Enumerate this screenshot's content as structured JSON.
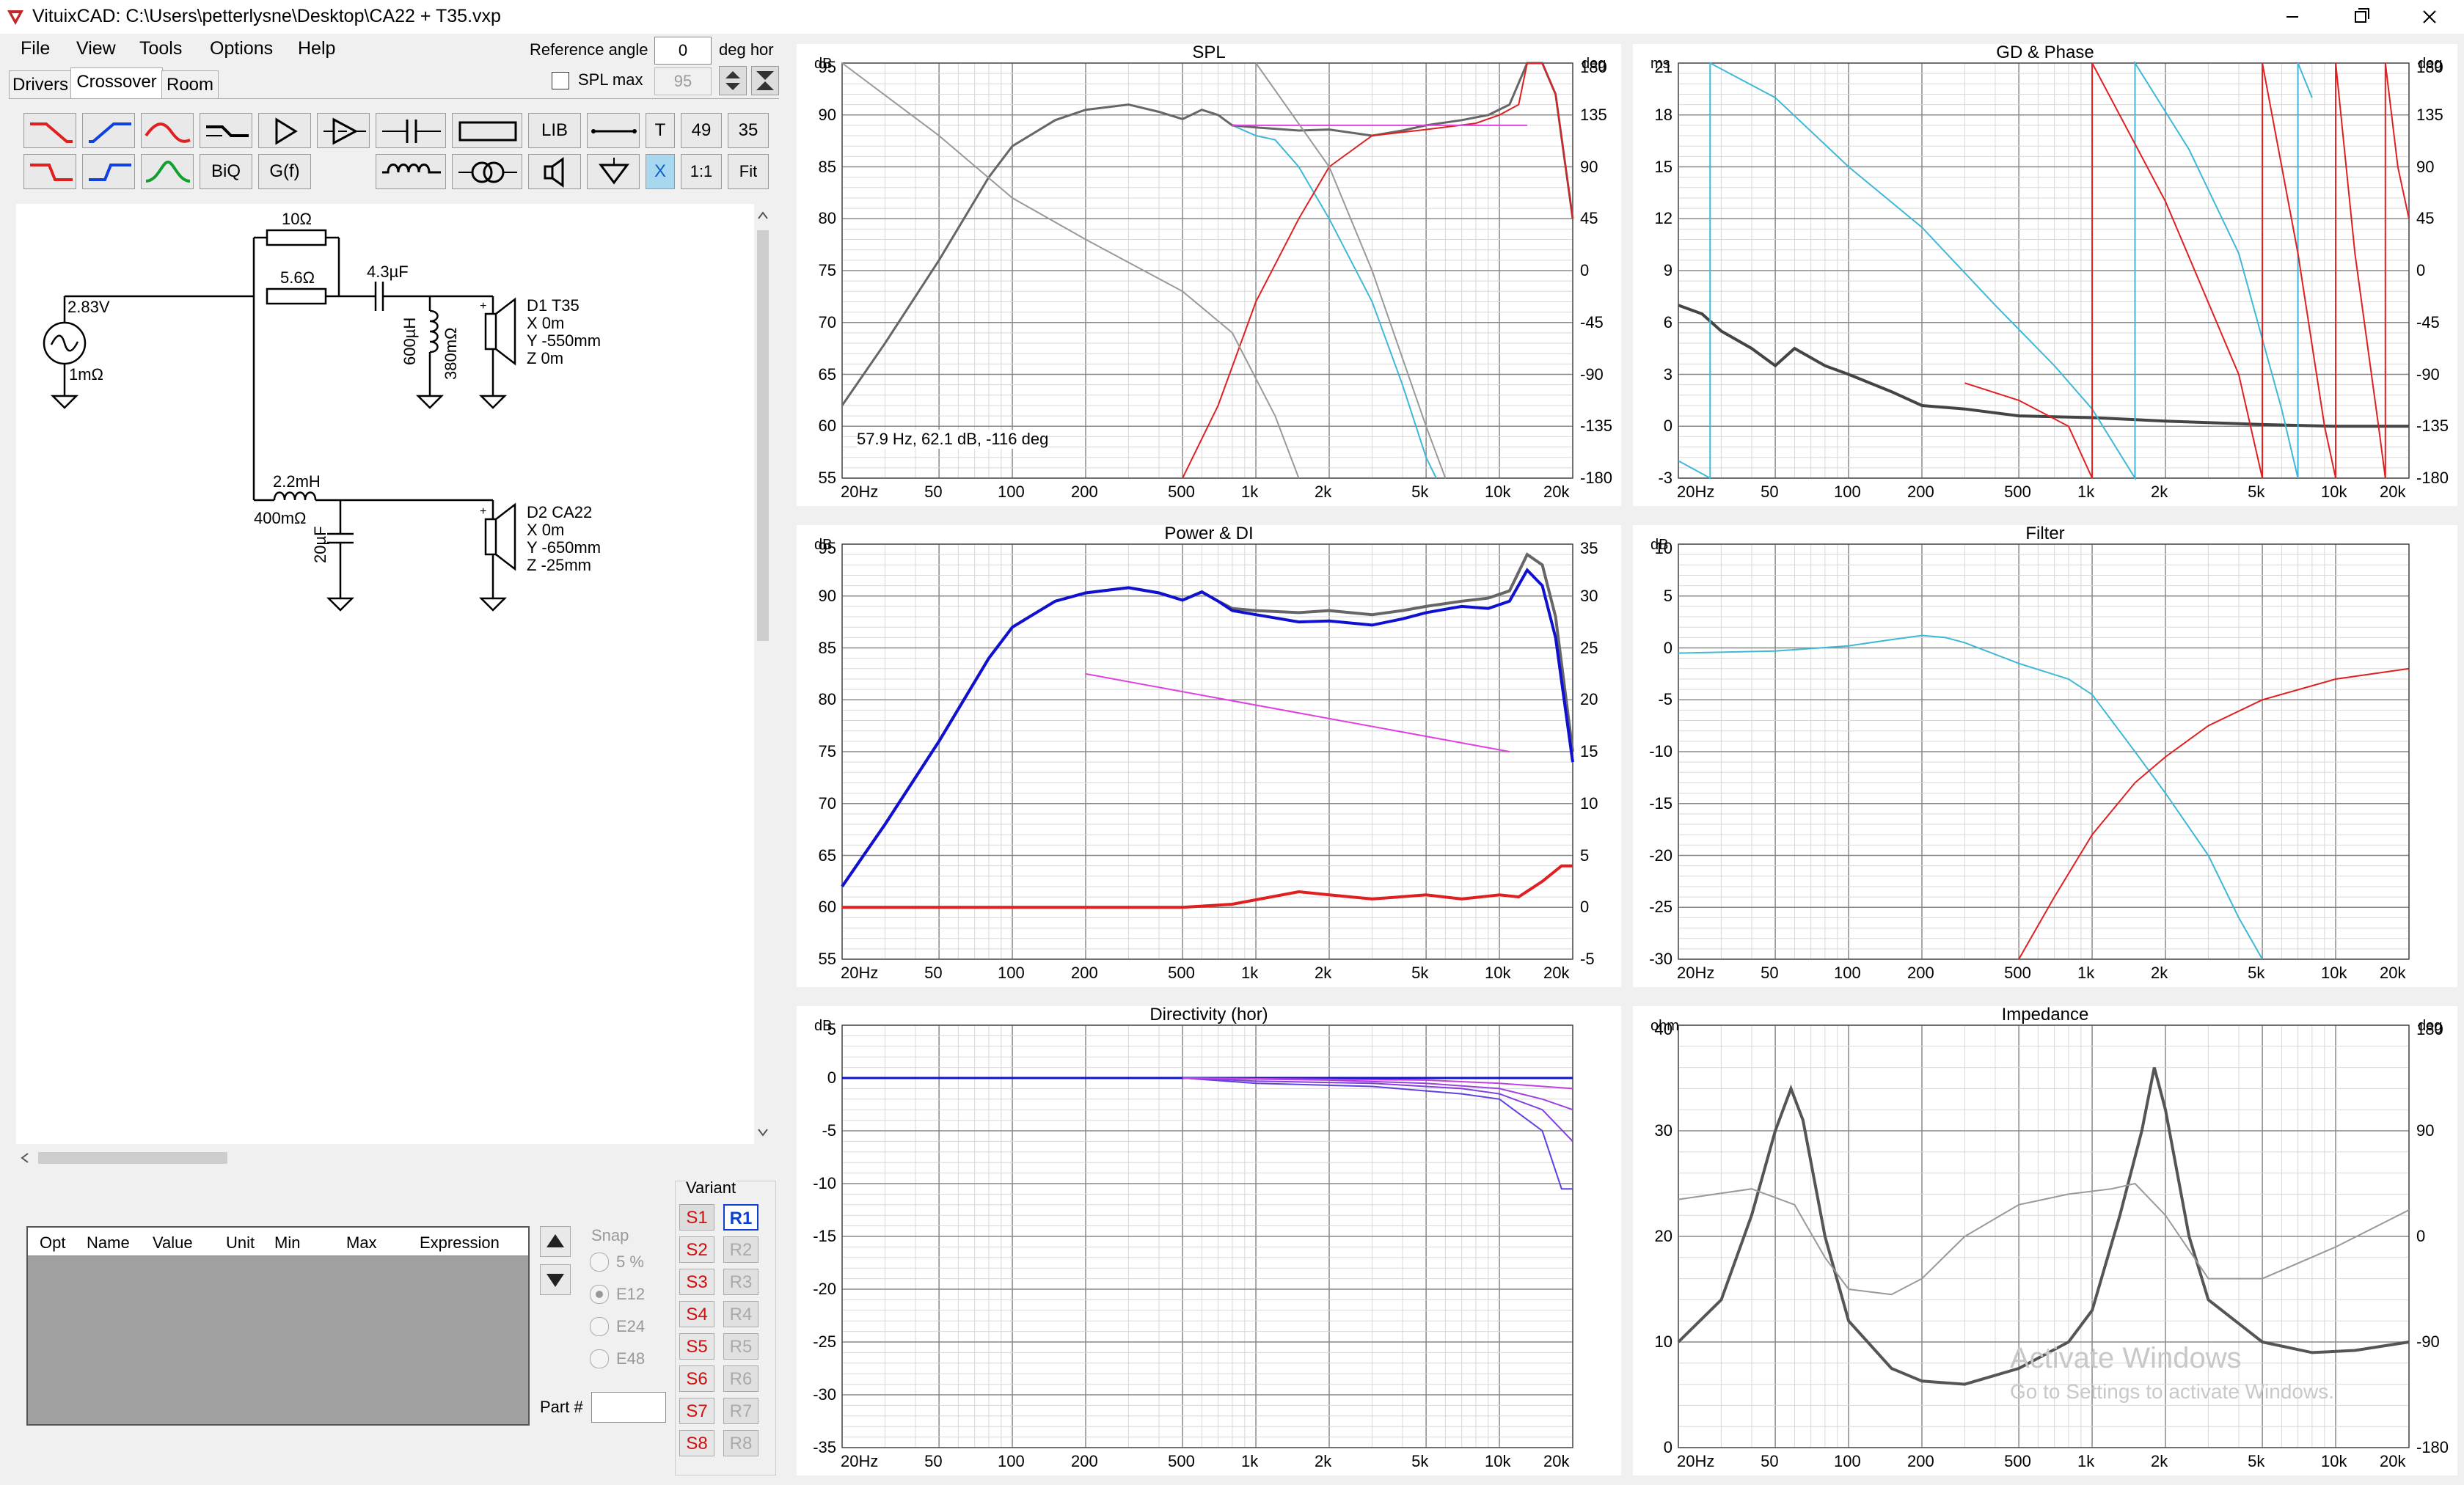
{
  "window": {
    "title": "VituixCAD: C:\\Users\\petterlysne\\Desktop\\CA22 + T35.vxp",
    "minimize_icon": "minimize-icon",
    "maximize_icon": "restore-icon",
    "close_icon": "close-icon"
  },
  "menu": {
    "file": "File",
    "view": "View",
    "tools": "Tools",
    "options": "Options",
    "help": "Help"
  },
  "toolbar": {
    "ref_angle_label": "Reference angle",
    "ref_angle_value": "0",
    "ref_angle_unit": "deg hor",
    "spl_max_label": "SPL max",
    "spl_max_value": "95"
  },
  "tabs": {
    "drivers": "Drivers",
    "crossover": "Crossover",
    "room": "Room"
  },
  "tools": {
    "lib": "LIB",
    "t": "T",
    "n49": "49",
    "n35": "35",
    "biq": "BiQ",
    "gf": "G(f)",
    "x": "X",
    "one": "1:1",
    "fit": "Fit"
  },
  "schematic": {
    "source_voltage": "2.83V",
    "source_r": "1mΩ",
    "r1": "10Ω",
    "r2": "5.6Ω",
    "c1": "4.3µF",
    "l1": "600µH",
    "l1r": "380mΩ",
    "d1_name": "D1 T35",
    "d1_x": "X 0m",
    "d1_y": "Y -550mm",
    "d1_z": "Z 0m",
    "l2": "2.2mH",
    "l2r": "400mΩ",
    "c2": "20µF",
    "d2_name": "D2 CA22",
    "d2_x": "X 0m",
    "d2_y": "Y -650mm",
    "d2_z": "Z -25mm"
  },
  "optgrid": {
    "columns": [
      "Opt",
      "Name",
      "Value",
      "Unit",
      "Min",
      "Max",
      "Expression"
    ]
  },
  "snap": {
    "label": "Snap",
    "options": [
      "5 %",
      "E12",
      "E24",
      "E48"
    ],
    "selected": "E12"
  },
  "part": {
    "label": "Part #",
    "value": ""
  },
  "variant": {
    "label": "Variant",
    "s": [
      "S1",
      "S2",
      "S3",
      "S4",
      "S5",
      "S6",
      "S7",
      "S8"
    ],
    "r": [
      "R1",
      "R2",
      "R3",
      "R4",
      "R5",
      "R6",
      "R7",
      "R8"
    ],
    "selected": "R1"
  },
  "colors": {
    "cyan": "#3fb8d8",
    "red": "#e02020",
    "gray": "#666666",
    "magenta": "#e040e0",
    "blue": "#1010d0"
  },
  "watermark": {
    "line1": "Activate Windows",
    "line2": "Go to Settings to activate Windows."
  },
  "xticks": [
    "20Hz",
    "50",
    "100",
    "200",
    "500",
    "1k",
    "2k",
    "5k",
    "10k",
    "20k"
  ],
  "charts": [
    {
      "id": "spl",
      "title": "SPL",
      "unit_left": "dB",
      "unit_right": "deg",
      "yleft": [
        "95",
        "90",
        "85",
        "80",
        "75",
        "70",
        "65",
        "60",
        "55"
      ],
      "yright": [
        "180",
        "135",
        "90",
        "45",
        "0",
        "-45",
        "-90",
        "-135",
        "-180"
      ],
      "readout": "57.9 Hz, 62.1 dB, -116 deg"
    },
    {
      "id": "gd",
      "title": "GD & Phase",
      "unit_left": "ms",
      "unit_right": "deg",
      "yleft": [
        "21",
        "18",
        "15",
        "12",
        "9",
        "6",
        "3",
        "0",
        "-3"
      ],
      "yright": [
        "180",
        "135",
        "90",
        "45",
        "0",
        "-45",
        "-90",
        "-135",
        "-180"
      ]
    },
    {
      "id": "power",
      "title": "Power & DI",
      "unit_left": "dB",
      "unit_right": "",
      "yleft": [
        "95",
        "90",
        "85",
        "80",
        "75",
        "70",
        "65",
        "60",
        "55"
      ],
      "yright": [
        "35",
        "30",
        "25",
        "20",
        "15",
        "10",
        "5",
        "0",
        "-5"
      ]
    },
    {
      "id": "filter",
      "title": "Filter",
      "unit_left": "dB",
      "unit_right": "",
      "yleft": [
        "10",
        "5",
        "0",
        "-5",
        "-10",
        "-15",
        "-20",
        "-25",
        "-30"
      ],
      "yright": []
    },
    {
      "id": "dir",
      "title": "Directivity (hor)",
      "unit_left": "dB",
      "unit_right": "",
      "yleft": [
        "5",
        "0",
        "-5",
        "-10",
        "-15",
        "-20",
        "-25",
        "-30",
        "-35"
      ],
      "yright": []
    },
    {
      "id": "imp",
      "title": "Impedance",
      "unit_left": "ohm",
      "unit_right": "deg",
      "yleft": [
        "40",
        "30",
        "20",
        "10",
        "0"
      ],
      "yright": [
        "180",
        "90",
        "0",
        "-90",
        "-180"
      ]
    }
  ]
}
